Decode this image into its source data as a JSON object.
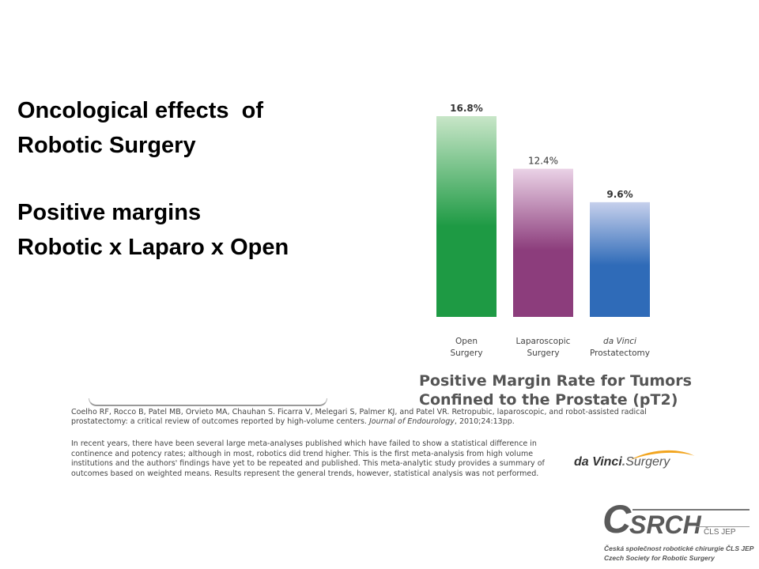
{
  "slide": {
    "title_line1": "Oncological effects  of",
    "title_line2": "Robotic Surgery",
    "title_line3": "Positive margins",
    "title_line4": "Robotic x Laparo x Open"
  },
  "chart_data": {
    "type": "bar",
    "title_line1": "Positive Margin Rate for Tumors",
    "title_line2": "Confined to the Prostate (pT2)",
    "categories": [
      {
        "line1": "Open",
        "line2": "Surgery",
        "italic": false
      },
      {
        "line1": "Laparoscopic",
        "line2": "Surgery",
        "italic": false
      },
      {
        "line1": "da Vinci",
        "line2": "Prostatectomy",
        "italic": true
      }
    ],
    "values": [
      16.8,
      12.4,
      9.6
    ],
    "value_labels": [
      "16.8%",
      "12.4%",
      "9.6%"
    ],
    "colors": [
      {
        "top": "#c8e6c8",
        "bottom": "#1e9a44"
      },
      {
        "top": "#ead2e6",
        "bottom": "#8c3d7c"
      },
      {
        "top": "#c6d0ec",
        "bottom": "#2f6bb8"
      }
    ],
    "ylim": [
      0,
      16.8
    ],
    "grid": false,
    "legend": "none"
  },
  "citation": {
    "text": "Coelho RF, Rocco B, Patel MB,  Orvieto MA, Chauhan S. Ficarra V, Melegari S, Palmer KJ, and Patel VR. Retropubic, laparoscopic, and robot-assisted radical prostatectomy: a critical review of outcomes reported by high-volume centers.",
    "journal": "Journal of Endourology",
    "ref": ", 2010;24:13pp."
  },
  "body_text": "In recent years, there have been several large meta-analyses published which have failed to show a statistical difference in continence and potency rates; although in most, robotics did trend higher.  This is the first meta-analysis from high volume institutions and the authors' findings have yet to be repeated and published. This meta-analytic study provides a summary of outcomes based on weighted means. Results represent the general trends, however, statistical analysis was not performed.",
  "davinci_logo": {
    "word1": "da Vinci",
    "word2": "Surgery",
    "swoosh_color": "#f2a51f"
  },
  "csrch_logo": {
    "big_letter": "C",
    "letters": "SRCH",
    "tag": "ČLS JEP",
    "sub_line1": "Česká společnost robotické chirurgie  ČLS JEP",
    "sub_line2": "Czech Society for Robotic Surgery"
  }
}
